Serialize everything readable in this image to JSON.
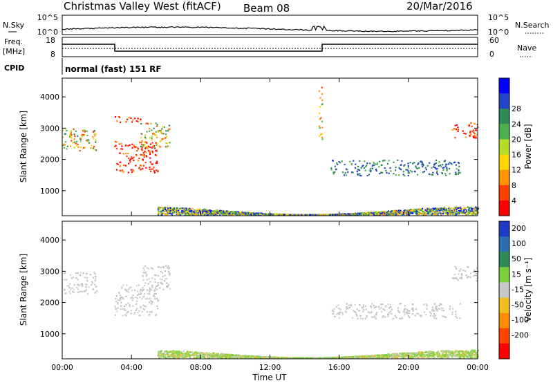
{
  "header": {
    "title": "Christmas Valley West (fitACF)",
    "beam": "Beam 08",
    "date": "20/Mar/2016"
  },
  "top_panels": {
    "nsky_label": "N.Sky",
    "nsky_left_ticks": [
      "10^5",
      "10^0"
    ],
    "nsky_right_ticks": [
      "10^5",
      "10^0"
    ],
    "nsearch_label": "N.Search",
    "freq_label_1": "Freq.",
    "freq_label_2": "[MHz]",
    "freq_ticks": [
      "18",
      "8"
    ],
    "nave_label": "Nave",
    "nave_ticks": [
      "60",
      "0"
    ],
    "cpid_label": "CPID",
    "cpid_text": "normal (fast) 151 RF"
  },
  "chart_data": [
    {
      "type": "heatmap",
      "name": "power",
      "ylabel": "Slant Range [km]",
      "xlabel": "",
      "xlim": [
        0,
        24
      ],
      "ylim": [
        200,
        4600
      ],
      "y_ticks": [
        "1000",
        "2000",
        "3000",
        "4000"
      ],
      "x_ticks": [
        "00:00",
        "04:00",
        "08:00",
        "12:00",
        "16:00",
        "20:00",
        "00:00"
      ],
      "colorbar_label": "Power [dB]",
      "colorbar_ticks": [
        "4",
        "8",
        "12",
        "16",
        "20",
        "24",
        "28"
      ],
      "colorbar_colors": [
        "#0000ff",
        "#2346c8",
        "#2e8b57",
        "#4fae4f",
        "#b4dc28",
        "#ffd700",
        "#ff9400",
        "#ff4000",
        "#ff0000"
      ],
      "regions": [
        {
          "t0": 0.0,
          "t1": 2.0,
          "r0": 2300,
          "r1": 3000,
          "level": "mid"
        },
        {
          "t0": 3.0,
          "t1": 5.5,
          "r0": 1600,
          "r1": 2600,
          "level": "high"
        },
        {
          "t0": 3.0,
          "t1": 4.5,
          "r0": 3200,
          "r1": 3400,
          "level": "high"
        },
        {
          "t0": 4.5,
          "t1": 6.2,
          "r0": 2400,
          "r1": 3200,
          "level": "mid"
        },
        {
          "t0": 14.8,
          "t1": 15.0,
          "r0": 2600,
          "r1": 4400,
          "level": "mid"
        },
        {
          "t0": 15.5,
          "t1": 23.0,
          "r0": 1500,
          "r1": 2000,
          "level": "low"
        },
        {
          "t0": 22.5,
          "t1": 24.0,
          "r0": 2700,
          "r1": 3200,
          "level": "high"
        }
      ]
    },
    {
      "type": "heatmap",
      "name": "velocity",
      "ylabel": "Slant Range [km]",
      "xlabel": "Time UT",
      "xlim": [
        0,
        24
      ],
      "ylim": [
        200,
        4600
      ],
      "y_ticks": [
        "1000",
        "2000",
        "3000",
        "4000"
      ],
      "x_ticks": [
        "00:00",
        "04:00",
        "08:00",
        "12:00",
        "16:00",
        "20:00",
        "00:00"
      ],
      "colorbar_label": "Velocity [m s⁻¹]",
      "colorbar_ticks": [
        "200",
        "100",
        "50",
        "15",
        "-15",
        "-50",
        "-100",
        "-200"
      ],
      "colorbar_colors": [
        "#1e3cc8",
        "#2b6fae",
        "#2e8b57",
        "#7dd03c",
        "#c8c8c8",
        "#f0c020",
        "#ff8c00",
        "#ff4500",
        "#ff0000"
      ],
      "regions": [
        {
          "t0": 0.0,
          "t1": 2.0,
          "r0": 2300,
          "r1": 3000,
          "level": "ground"
        },
        {
          "t0": 3.0,
          "t1": 5.5,
          "r0": 1600,
          "r1": 2600,
          "level": "ground"
        },
        {
          "t0": 4.5,
          "t1": 6.2,
          "r0": 2400,
          "r1": 3200,
          "level": "ground"
        },
        {
          "t0": 15.5,
          "t1": 23.0,
          "r0": 1500,
          "r1": 2000,
          "level": "ground"
        },
        {
          "t0": 22.5,
          "t1": 24.0,
          "r0": 2700,
          "r1": 3200,
          "level": "ground"
        }
      ]
    }
  ]
}
